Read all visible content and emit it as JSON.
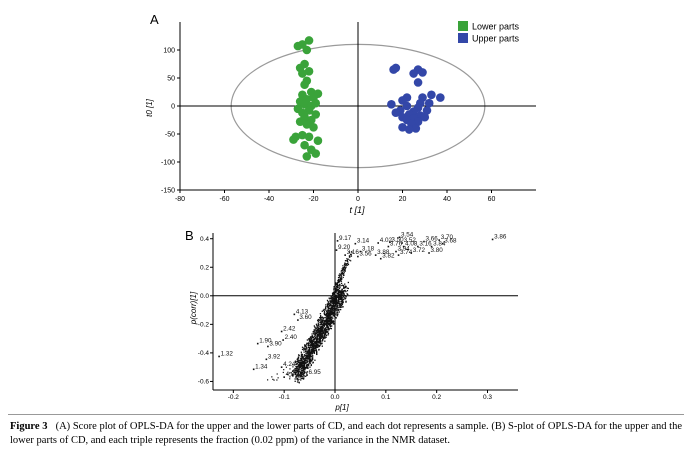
{
  "figure": {
    "caption": {
      "label": "Figure 3",
      "text": "(A) Score plot of OPLS-DA for the upper and the lower parts of CD, and each dot represents a sample. (B) S-plot of OPLS-DA for the upper and the lower parts of CD, and each triple represents the fraction (0.02 ppm) of the variance in the NMR dataset."
    },
    "colors": {
      "lower": "#3aa33a",
      "upper": "#3347a8",
      "ellipse": "#9a9a9a",
      "points": "#111111"
    }
  },
  "chart_data": [
    {
      "type": "scatter",
      "panel_label": "A",
      "xlabel": "t [1]",
      "ylabel": "t0 [1]",
      "xlim": [
        -80,
        80
      ],
      "ylim": [
        -150,
        150
      ],
      "xticks": [
        -80,
        -60,
        -40,
        -20,
        0,
        20,
        40,
        60
      ],
      "yticks": [
        -150,
        -100,
        -50,
        0,
        50,
        100
      ],
      "legend": {
        "placement": "top-right",
        "entries": [
          "Lower parts",
          "Upper parts"
        ]
      },
      "series": [
        {
          "name": "Lower parts",
          "points": [
            [
              -25,
              110
            ],
            [
              -22,
              117
            ],
            [
              -27,
              107
            ],
            [
              -23,
              100
            ],
            [
              -24,
              75
            ],
            [
              -26,
              68
            ],
            [
              -22,
              62
            ],
            [
              -25,
              58
            ],
            [
              -23,
              45
            ],
            [
              -24,
              38
            ],
            [
              -21,
              25
            ],
            [
              -18,
              22
            ],
            [
              -25,
              20
            ],
            [
              -20,
              15
            ],
            [
              -23,
              12
            ],
            [
              -26,
              8
            ],
            [
              -19,
              5
            ],
            [
              -24,
              3
            ],
            [
              -21,
              0
            ],
            [
              -27,
              -5
            ],
            [
              -22,
              -8
            ],
            [
              -25,
              -12
            ],
            [
              -19,
              -15
            ],
            [
              -24,
              -20
            ],
            [
              -21,
              -25
            ],
            [
              -26,
              -28
            ],
            [
              -23,
              -33
            ],
            [
              -20,
              -38
            ],
            [
              -28,
              -55
            ],
            [
              -25,
              -52
            ],
            [
              -29,
              -60
            ],
            [
              -22,
              -55
            ],
            [
              -18,
              -62
            ],
            [
              -24,
              -70
            ],
            [
              -21,
              -78
            ],
            [
              -23,
              -90
            ],
            [
              -19,
              -85
            ]
          ]
        },
        {
          "name": "Upper parts",
          "points": [
            [
              27,
              65
            ],
            [
              25,
              58
            ],
            [
              29,
              60
            ],
            [
              17,
              68
            ],
            [
              16,
              65
            ],
            [
              27,
              42
            ],
            [
              33,
              20
            ],
            [
              29,
              15
            ],
            [
              22,
              15
            ],
            [
              37,
              15
            ],
            [
              20,
              10
            ],
            [
              28,
              5
            ],
            [
              32,
              5
            ],
            [
              15,
              3
            ],
            [
              22,
              0
            ],
            [
              27,
              -3
            ],
            [
              19,
              -8
            ],
            [
              25,
              -10
            ],
            [
              31,
              -8
            ],
            [
              17,
              -12
            ],
            [
              23,
              -15
            ],
            [
              28,
              -17
            ],
            [
              20,
              -20
            ],
            [
              25,
              -22
            ],
            [
              30,
              -20
            ],
            [
              22,
              -25
            ],
            [
              27,
              -28
            ],
            [
              24,
              -32
            ],
            [
              20,
              -38
            ],
            [
              26,
              -40
            ],
            [
              23,
              -42
            ]
          ]
        }
      ],
      "ellipse": {
        "cx": 0,
        "cy": 0,
        "rx": 57,
        "ry": 110
      }
    },
    {
      "type": "scatter",
      "panel_label": "B",
      "xlabel": "p[1]",
      "ylabel": "p(corr)[1]",
      "xlim": [
        -0.24,
        0.36
      ],
      "ylim": [
        -0.66,
        0.44
      ],
      "xticks": [
        -0.2,
        -0.1,
        0.0,
        0.1,
        0.2,
        0.3
      ],
      "xtick_labels": [
        "-0.2",
        "-0.1",
        "0.0",
        "0.1",
        "0.2",
        "0.3"
      ],
      "yticks": [
        0.4,
        0.2,
        0.0,
        -0.2,
        -0.4,
        -0.6
      ],
      "ytick_labels": [
        "0.4",
        "0.2",
        "0.0",
        "-0.2",
        "-0.4",
        "-0.6"
      ],
      "annotations": [
        {
          "label": "9.17",
          "x": 0.005,
          "y": 0.385
        },
        {
          "label": "3.14",
          "x": 0.04,
          "y": 0.365
        },
        {
          "label": "4.02",
          "x": 0.085,
          "y": 0.37
        },
        {
          "label": "3.50",
          "x": 0.108,
          "y": 0.375
        },
        {
          "label": "3.54",
          "x": 0.127,
          "y": 0.41
        },
        {
          "label": "3.52",
          "x": 0.132,
          "y": 0.37
        },
        {
          "label": "3.66",
          "x": 0.175,
          "y": 0.38
        },
        {
          "label": "3.70",
          "x": 0.205,
          "y": 0.39
        },
        {
          "label": "3.68",
          "x": 0.212,
          "y": 0.365
        },
        {
          "label": "3.86",
          "x": 0.31,
          "y": 0.395
        },
        {
          "label": "3.76",
          "x": 0.105,
          "y": 0.345
        },
        {
          "label": "4.08",
          "x": 0.135,
          "y": 0.345
        },
        {
          "label": "3.16",
          "x": 0.163,
          "y": 0.345
        },
        {
          "label": "3.84",
          "x": 0.19,
          "y": 0.345
        },
        {
          "label": "9.20",
          "x": 0.003,
          "y": 0.32
        },
        {
          "label": "3.18",
          "x": 0.05,
          "y": 0.31
        },
        {
          "label": "3.94",
          "x": 0.12,
          "y": 0.31
        },
        {
          "label": "3.72",
          "x": 0.15,
          "y": 0.3
        },
        {
          "label": "3.80",
          "x": 0.185,
          "y": 0.3
        },
        {
          "label": "3.16",
          "x": 0.02,
          "y": 0.285
        },
        {
          "label": "3.56",
          "x": 0.045,
          "y": 0.275
        },
        {
          "label": "3.88",
          "x": 0.08,
          "y": 0.285
        },
        {
          "label": "3.74",
          "x": 0.125,
          "y": 0.285
        },
        {
          "label": "3.82",
          "x": 0.09,
          "y": 0.26
        },
        {
          "label": "4.13",
          "x": -0.08,
          "y": -0.13
        },
        {
          "label": "3.60",
          "x": -0.073,
          "y": -0.17
        },
        {
          "label": "2.42",
          "x": -0.105,
          "y": -0.25
        },
        {
          "label": "2.40",
          "x": -0.102,
          "y": -0.31
        },
        {
          "label": "1.90",
          "x": -0.152,
          "y": -0.335
        },
        {
          "label": "3.90",
          "x": -0.132,
          "y": -0.355
        },
        {
          "label": "1.32",
          "x": -0.228,
          "y": -0.425
        },
        {
          "label": "3.92",
          "x": -0.135,
          "y": -0.445
        },
        {
          "label": "1.34",
          "x": -0.16,
          "y": -0.515
        },
        {
          "label": "4.24",
          "x": -0.105,
          "y": -0.5
        },
        {
          "label": "4.34",
          "x": -0.1,
          "y": -0.57
        },
        {
          "label": "6.95",
          "x": -0.055,
          "y": -0.555
        }
      ]
    }
  ]
}
